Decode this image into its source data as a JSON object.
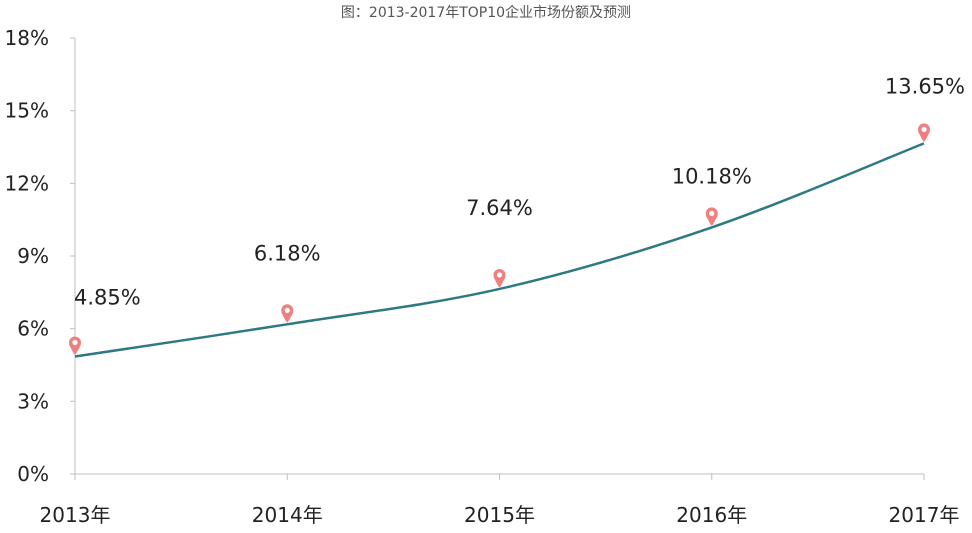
{
  "chart_data": {
    "type": "line",
    "title": "图：2013-2017年TOP10企业市场份额及预测",
    "xlabel": "",
    "ylabel": "",
    "categories": [
      "2013年",
      "2014年",
      "2015年",
      "2016年",
      "2017年"
    ],
    "series": [
      {
        "name": "TOP10企业市场份额",
        "values": [
          4.85,
          6.18,
          7.64,
          10.18,
          13.65
        ]
      }
    ],
    "data_labels": [
      "4.85%",
      "6.18%",
      "7.64%",
      "10.18%",
      "13.65%"
    ],
    "y_ticks": [
      "0%",
      "3%",
      "6%",
      "9%",
      "12%",
      "15%",
      "18%"
    ],
    "y_tick_values": [
      0,
      3,
      6,
      9,
      12,
      15,
      18
    ],
    "ylim": [
      0,
      18
    ],
    "grid": false,
    "legend": "none",
    "colors": {
      "line": "#2e7a82",
      "marker": "#f08080",
      "axis": "#bfbfbf"
    }
  }
}
